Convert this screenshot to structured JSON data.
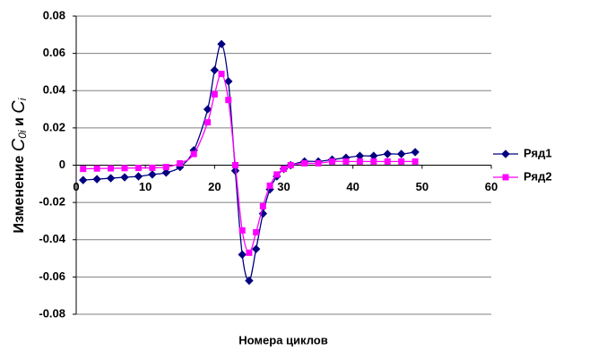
{
  "chart_data": {
    "type": "line",
    "x_label": "Номера циклов",
    "y_label": {
      "prefix": "Изменение",
      "var1": "C",
      "sub1": "0i",
      "conj": "и",
      "var2": "C",
      "sub2": "i"
    },
    "xlim": [
      0,
      60
    ],
    "xticks": [
      0,
      10,
      20,
      30,
      40,
      50,
      60
    ],
    "ylim": [
      -0.08,
      0.08
    ],
    "yticks": [
      0.08,
      0.06,
      0.04,
      0.02,
      0,
      -0.02,
      -0.04,
      -0.06,
      -0.08
    ],
    "grid": true,
    "legend": "right",
    "x": [
      1,
      3,
      5,
      7,
      9,
      11,
      13,
      15,
      17,
      19,
      20,
      21,
      22,
      23,
      24,
      25,
      26,
      27,
      28,
      29,
      30,
      31,
      33,
      35,
      37,
      39,
      41,
      43,
      45,
      47,
      49
    ],
    "series": [
      {
        "name": "Ряд1",
        "color": "#000080",
        "marker": "diamond",
        "values": [
          -0.008,
          -0.0075,
          -0.007,
          -0.0065,
          -0.006,
          -0.005,
          -0.004,
          -0.001,
          0.008,
          0.03,
          0.051,
          0.065,
          0.045,
          -0.003,
          -0.048,
          -0.062,
          -0.045,
          -0.026,
          -0.013,
          -0.006,
          -0.002,
          0,
          0.002,
          0.002,
          0.003,
          0.004,
          0.005,
          0.005,
          0.006,
          0.006,
          0.007
        ]
      },
      {
        "name": "Ряд2",
        "color": "#ff00ff",
        "marker": "square",
        "values": [
          -0.002,
          -0.0018,
          -0.0017,
          -0.0016,
          -0.0015,
          -0.0014,
          -0.001,
          0.001,
          0.006,
          0.023,
          0.038,
          0.049,
          0.035,
          0,
          -0.035,
          -0.047,
          -0.036,
          -0.022,
          -0.011,
          -0.005,
          -0.002,
          0,
          0.001,
          0.001,
          0.002,
          0.002,
          0.002,
          0.002,
          0.002,
          0.002,
          0.002
        ]
      }
    ]
  }
}
